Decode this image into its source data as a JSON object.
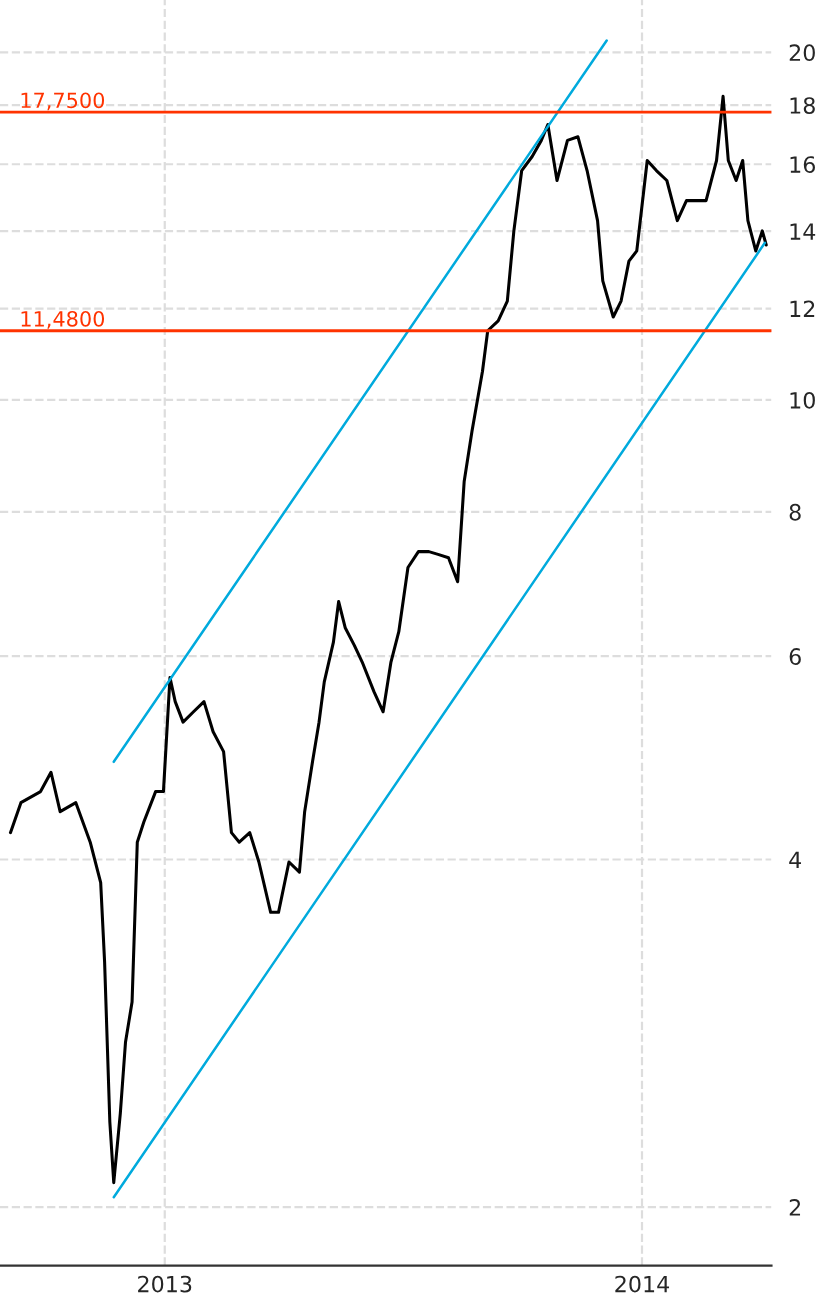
{
  "chart_data": {
    "type": "line",
    "log": "y",
    "grid": true,
    "marker": "none",
    "line_style": "solid",
    "legend": false,
    "xlim": [
      "2012-08-28",
      "2014-04-10"
    ],
    "ylim": [
      1.78,
      22.2
    ],
    "xticks": [
      {
        "value": "2013-01-01",
        "label": "2013"
      },
      {
        "value": "2014-01-01",
        "label": "2014"
      }
    ],
    "yticks": [
      2,
      4,
      6,
      8,
      10,
      12,
      14,
      16,
      18,
      20
    ],
    "series": [
      {
        "color": "#000000",
        "x": [
          "2012-09-05",
          "2012-09-13",
          "2012-09-28",
          "2012-10-06",
          "2012-10-13",
          "2012-10-25",
          "2012-11-05",
          "2012-11-13",
          "2012-11-16",
          "2012-11-20",
          "2012-11-23",
          "2012-11-28",
          "2012-12-02",
          "2012-12-07",
          "2012-12-11",
          "2012-12-16",
          "2012-12-25",
          "2012-12-31",
          "2013-01-05",
          "2013-01-09",
          "2013-01-15",
          "2013-01-23",
          "2013-01-31",
          "2013-02-07",
          "2013-02-15",
          "2013-02-21",
          "2013-02-27",
          "2013-03-07",
          "2013-03-14",
          "2013-03-23",
          "2013-03-29",
          "2013-04-06",
          "2013-04-14",
          "2013-04-18",
          "2013-04-24",
          "2013-04-29",
          "2013-05-03",
          "2013-05-10",
          "2013-05-14",
          "2013-05-19",
          "2013-05-26",
          "2013-06-01",
          "2013-06-10",
          "2013-06-17",
          "2013-06-23",
          "2013-06-29",
          "2013-07-06",
          "2013-07-14",
          "2013-07-22",
          "2013-07-29",
          "2013-08-06",
          "2013-08-13",
          "2013-08-18",
          "2013-08-24",
          "2013-09-01",
          "2013-09-05",
          "2013-09-13",
          "2013-09-20",
          "2013-09-25",
          "2013-10-01",
          "2013-10-09",
          "2013-10-16",
          "2013-10-21",
          "2013-10-28",
          "2013-11-05",
          "2013-11-13",
          "2013-11-20",
          "2013-11-28",
          "2013-12-02",
          "2013-12-10",
          "2013-12-16",
          "2013-12-22",
          "2013-12-28",
          "2014-01-05",
          "2014-01-12",
          "2014-01-20",
          "2014-01-28",
          "2014-02-04",
          "2014-02-12",
          "2014-02-19",
          "2014-02-27",
          "2014-03-04",
          "2014-03-08",
          "2014-03-14",
          "2014-03-19",
          "2014-03-23",
          "2014-03-29",
          "2014-04-03",
          "2014-04-06"
        ],
        "values": [
          4.22,
          4.48,
          4.58,
          4.76,
          4.4,
          4.48,
          4.14,
          3.82,
          3.26,
          2.37,
          2.1,
          2.41,
          2.78,
          3.01,
          4.14,
          4.31,
          4.58,
          4.58,
          5.75,
          5.48,
          5.26,
          5.37,
          5.48,
          5.16,
          4.96,
          4.22,
          4.14,
          4.22,
          3.98,
          3.6,
          3.6,
          3.98,
          3.9,
          4.4,
          4.86,
          5.26,
          5.7,
          6.17,
          6.69,
          6.35,
          6.13,
          5.93,
          5.59,
          5.37,
          5.93,
          6.3,
          7.16,
          7.39,
          7.39,
          7.35,
          7.3,
          6.96,
          8.5,
          9.4,
          10.59,
          11.48,
          11.71,
          12.18,
          14.01,
          15.8,
          16.25,
          16.78,
          17.32,
          15.49,
          16.78,
          16.9,
          15.8,
          14.3,
          12.68,
          11.8,
          12.18,
          13.19,
          13.46,
          16.12,
          15.8,
          15.49,
          14.3,
          14.88,
          14.88,
          14.88,
          16.12,
          18.32,
          16.12,
          15.49,
          16.12,
          14.3,
          13.46,
          14.01,
          13.62
        ]
      },
      {
        "color": "#00aadd",
        "x": [
          "2012-11-23",
          "2013-12-05"
        ],
        "values": [
          4.86,
          20.48
        ]
      },
      {
        "color": "#00aadd",
        "x": [
          "2012-11-23",
          "2014-04-05"
        ],
        "values": [
          2.04,
          13.68
        ]
      }
    ],
    "ref_lines": [
      {
        "axis": "y",
        "value": 17.75,
        "label": "17,7500",
        "color": "#ff3300"
      },
      {
        "axis": "y",
        "value": 11.48,
        "label": "11,4800",
        "color": "#ff3300"
      }
    ]
  }
}
